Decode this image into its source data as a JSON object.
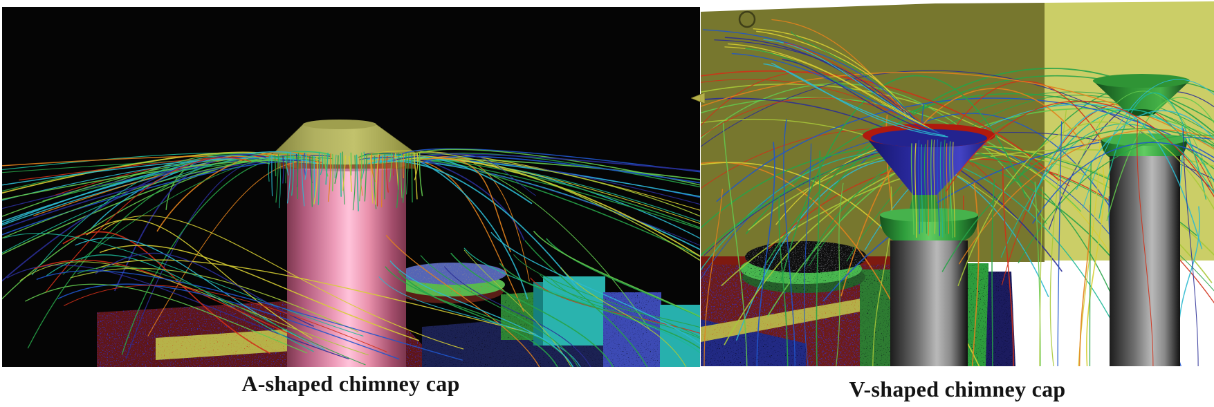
{
  "figure": {
    "type": "CFD streamline visualization, two rendered 3D panels",
    "panels": [
      {
        "id": "a-shaped",
        "caption": "A-shaped chimney cap",
        "background_color": "#060606",
        "chimney_color": "#f0a2bf",
        "cap_color": "#b3b362"
      },
      {
        "id": "v-shaped",
        "caption": "V-shaped chimney cap",
        "wall_color_left": "#77772e",
        "wall_color_right": "#cbce67",
        "floor_color": "#ffffff",
        "funnel_rim_color": "#b01a0e",
        "funnel_inner_color": "#2b2ba4",
        "collar_color": "#3fae4a",
        "chimney_color": "#8f8f8f",
        "cap_cone_color": "#2f9435"
      }
    ],
    "streamline_palette": {
      "green": "#27a348",
      "green2": "#63c94e",
      "ygreen": "#a8c938",
      "cyan": "#2cb9cf",
      "teal": "#1db897",
      "blue": "#1f55cc",
      "navy": "#2a2d96",
      "orange": "#e2821d",
      "red": "#d03018",
      "yellow": "#d6ce33"
    }
  }
}
